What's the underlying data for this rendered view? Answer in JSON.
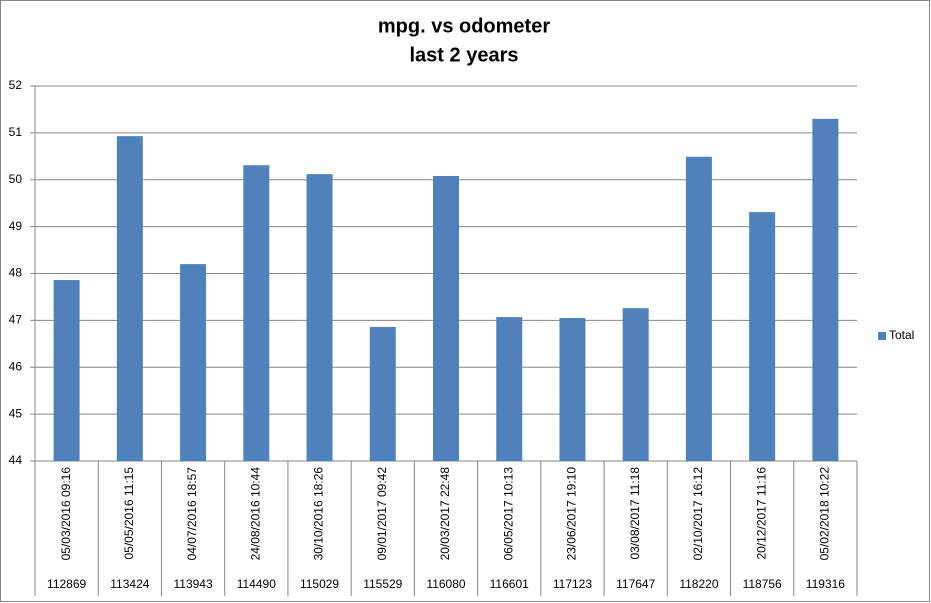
{
  "chart_data": {
    "type": "bar",
    "title": "mpg. vs odometer",
    "subtitle": "last 2 years",
    "categories": [
      "05/03/2016 09:16",
      "05/05/2016 11:15",
      "04/07/2016 18:57",
      "24/08/2016 10:44",
      "30/10/2016 18:26",
      "09/01/2017 09:42",
      "20/03/2017 22:48",
      "06/05/2017 10:13",
      "23/06/2017 19:10",
      "03/08/2017 11:18",
      "02/10/2017 16:12",
      "20/12/2017 11:16",
      "05/02/2018 10:22"
    ],
    "odometer": [
      112869,
      113424,
      113943,
      114490,
      115029,
      115529,
      116080,
      116601,
      117123,
      117647,
      118220,
      118756,
      119316
    ],
    "series": [
      {
        "name": "Total",
        "color": "#4f81bd",
        "values": [
          47.86,
          50.93,
          48.2,
          50.31,
          50.12,
          46.86,
          50.08,
          47.07,
          47.05,
          47.26,
          50.49,
          49.31,
          51.3
        ]
      }
    ],
    "ylim": [
      44,
      52
    ],
    "yticks": [
      44,
      45,
      46,
      47,
      48,
      49,
      50,
      51,
      52
    ],
    "grid": true,
    "legend": "right"
  }
}
